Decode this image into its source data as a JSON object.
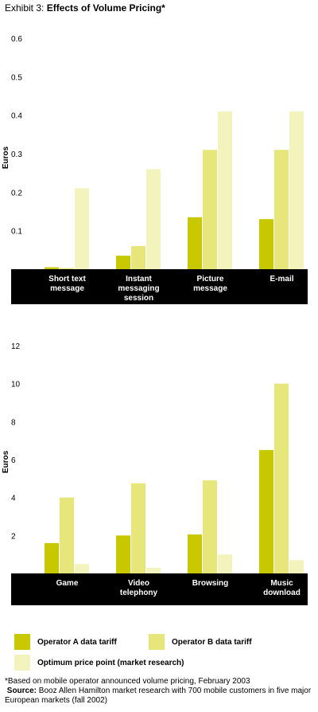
{
  "title": {
    "prefix": "Exhibit 3:",
    "main": "Effects of Volume Pricing*"
  },
  "colors": {
    "operator_a": "#c8c800",
    "operator_b": "#e6e67a",
    "optimum": "#f3f3bd",
    "axis_band": "#000000"
  },
  "legend": {
    "operator_a": "Operator A data tariff",
    "operator_b": "Operator B data tariff",
    "optimum": "Optimum price point (market research)"
  },
  "footnote": "*Based on mobile operator announced volume pricing, February 2003",
  "source_label": "Source:",
  "source_text": "Booz Allen Hamilton market research with 700 mobile customers in five major European markets (fall 2002)",
  "chart_data": [
    {
      "type": "bar",
      "ylabel": "Euros",
      "ylim": [
        0,
        0.6
      ],
      "yticks": [
        "0.1",
        "0.2",
        "0.3",
        "0.4",
        "0.5",
        "0.6"
      ],
      "grid": false,
      "categories": [
        [
          "Short text",
          "message"
        ],
        [
          "Instant",
          "messaging",
          "session"
        ],
        [
          "Picture",
          "message"
        ],
        [
          "E-mail"
        ]
      ],
      "series": [
        {
          "name": "Operator A data tariff",
          "values": [
            0.005,
            0.035,
            0.135,
            0.13
          ]
        },
        {
          "name": "Operator B data tariff",
          "values": [
            0.003,
            0.06,
            0.31,
            0.31
          ]
        },
        {
          "name": "Optimum price point (market research)",
          "values": [
            0.21,
            0.26,
            0.41,
            0.41
          ]
        }
      ]
    },
    {
      "type": "bar",
      "ylabel": "Euros",
      "ylim": [
        0,
        12
      ],
      "yticks": [
        "2",
        "4",
        "6",
        "8",
        "10",
        "12"
      ],
      "grid": false,
      "categories": [
        [
          "Game"
        ],
        [
          "Video",
          "telephony"
        ],
        [
          "Browsing"
        ],
        [
          "Music",
          "download"
        ]
      ],
      "series": [
        {
          "name": "Operator A data tariff",
          "values": [
            1.6,
            2.0,
            2.05,
            6.5
          ]
        },
        {
          "name": "Operator B data tariff",
          "values": [
            4.0,
            4.75,
            4.9,
            10.0
          ]
        },
        {
          "name": "Optimum price point (market research)",
          "values": [
            0.5,
            0.3,
            1.0,
            0.7
          ]
        }
      ]
    }
  ]
}
